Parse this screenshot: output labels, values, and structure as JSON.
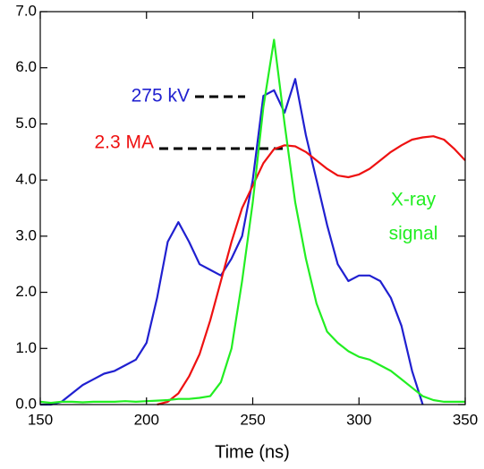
{
  "chart_data": {
    "type": "line",
    "x_label": "Time (ns)",
    "x": [
      150,
      155,
      160,
      165,
      170,
      175,
      180,
      185,
      190,
      195,
      200,
      205,
      210,
      215,
      220,
      225,
      230,
      235,
      240,
      245,
      250,
      255,
      260,
      265,
      270,
      275,
      280,
      285,
      290,
      295,
      300,
      305,
      310,
      315,
      320,
      325,
      330,
      335,
      340,
      345,
      350
    ],
    "series": [
      {
        "name": "275 kV",
        "color": "#2020d0",
        "values": [
          0,
          0,
          0.05,
          0.2,
          0.35,
          0.45,
          0.55,
          0.6,
          0.7,
          0.8,
          1.1,
          1.9,
          2.9,
          3.25,
          2.9,
          2.5,
          2.4,
          2.3,
          2.6,
          3.0,
          4.0,
          5.5,
          5.6,
          5.2,
          5.8,
          4.8,
          4.0,
          3.2,
          2.5,
          2.2,
          2.3,
          2.3,
          2.2,
          1.9,
          1.4,
          0.6,
          0,
          null,
          null,
          null,
          null
        ]
      },
      {
        "name": "2.3 MA",
        "color": "#ee1111",
        "values": [
          null,
          null,
          null,
          null,
          null,
          null,
          null,
          null,
          null,
          null,
          null,
          0,
          0.05,
          0.2,
          0.5,
          0.9,
          1.5,
          2.2,
          2.9,
          3.5,
          3.9,
          4.3,
          4.55,
          4.62,
          4.6,
          4.5,
          4.35,
          4.2,
          4.08,
          4.05,
          4.1,
          4.2,
          4.35,
          4.5,
          4.62,
          4.72,
          4.76,
          4.78,
          4.72,
          4.55,
          4.35
        ]
      },
      {
        "name": "X-ray signal",
        "color": "#22ee22",
        "values": [
          0.05,
          0.03,
          0.05,
          0.05,
          0.04,
          0.05,
          0.05,
          0.05,
          0.06,
          0.05,
          0.06,
          0.07,
          0.08,
          0.1,
          0.1,
          0.12,
          0.15,
          0.4,
          1.0,
          2.2,
          3.6,
          5.3,
          6.5,
          5.0,
          3.6,
          2.6,
          1.8,
          1.3,
          1.1,
          0.95,
          0.85,
          0.8,
          0.7,
          0.6,
          0.45,
          0.3,
          0.15,
          0.08,
          0.05,
          0.05,
          0.05
        ]
      }
    ],
    "annotations": [
      "X-ray",
      "signal"
    ],
    "xlim": [
      150,
      350
    ],
    "xticks": [
      150,
      200,
      250,
      300,
      350
    ],
    "ylim": [
      0,
      7
    ],
    "yticks": [
      {
        "value": 0,
        "label": "0.0"
      },
      {
        "value": 1,
        "label": "1.0"
      },
      {
        "value": 2,
        "label": "2.0"
      },
      {
        "value": 3,
        "label": "3.0"
      },
      {
        "value": 4,
        "label": "4.0"
      },
      {
        "value": 5,
        "label": "5.0"
      },
      {
        "value": 6,
        "label": "6.0"
      },
      {
        "value": 7,
        "label": "7.0"
      }
    ]
  }
}
